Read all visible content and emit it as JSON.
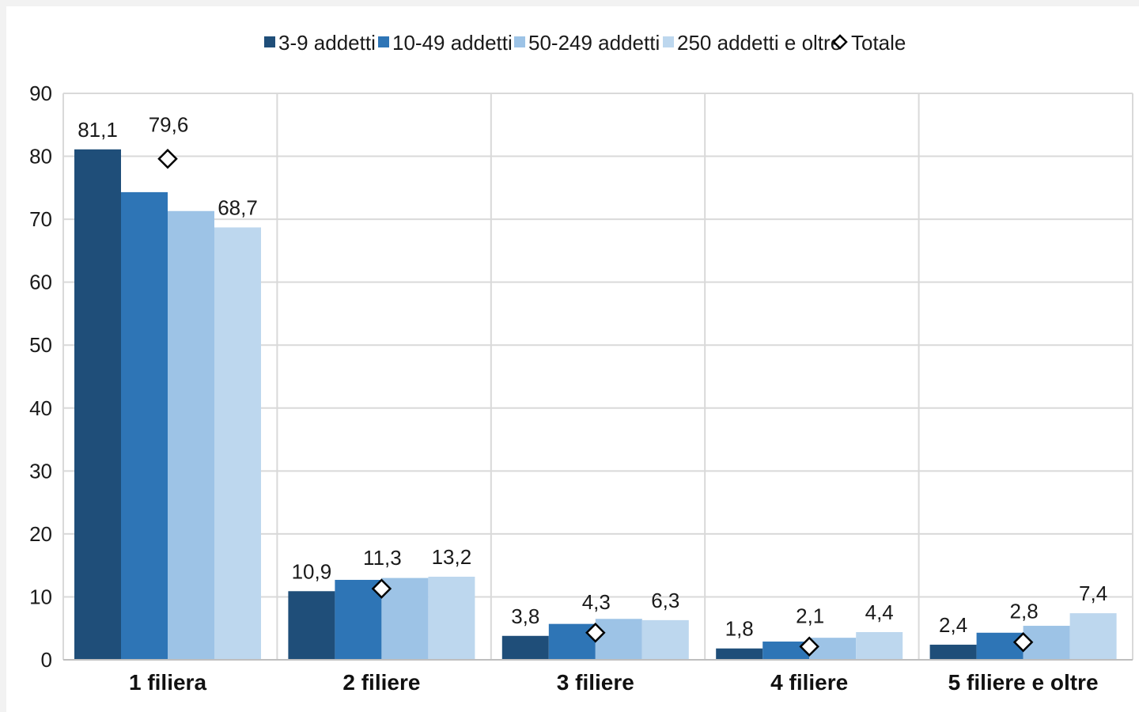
{
  "chart_data": {
    "type": "bar",
    "title": "",
    "xlabel": "",
    "ylabel": "",
    "ylim": [
      0,
      90
    ],
    "yticks": [
      0,
      10,
      20,
      30,
      40,
      50,
      60,
      70,
      80,
      90
    ],
    "grid": true,
    "legend_position": "top",
    "categories": [
      "1 filiera",
      "2 filiere",
      "3 filiere",
      "4 filiere",
      "5 filiere e oltre"
    ],
    "series": [
      {
        "name": "3-9 addetti",
        "color": "#1f4e79",
        "values": [
          81.1,
          10.9,
          3.8,
          1.8,
          2.4
        ],
        "labels": [
          "81,1",
          "10,9",
          "3,8",
          "1,8",
          "2,4"
        ]
      },
      {
        "name": "10-49 addetti",
        "color": "#2e75b6",
        "values": [
          74.3,
          12.7,
          5.7,
          2.9,
          4.3
        ],
        "labels": [
          "",
          "",
          "",
          "",
          ""
        ]
      },
      {
        "name": "50-249 addetti",
        "color": "#9dc3e6",
        "values": [
          71.3,
          13.0,
          6.5,
          3.5,
          5.4
        ],
        "labels": [
          "",
          "",
          "",
          "",
          ""
        ]
      },
      {
        "name": "250 addetti e oltre",
        "color": "#bdd7ee",
        "values": [
          68.7,
          13.2,
          6.3,
          4.4,
          7.4
        ],
        "labels": [
          "68,7",
          "13,2",
          "6,3",
          "4,4",
          "7,4"
        ]
      }
    ],
    "total": {
      "name": "Totale",
      "marker": "diamond",
      "values": [
        79.6,
        11.3,
        4.3,
        2.1,
        2.8
      ],
      "labels": [
        "79,6",
        "11,3",
        "4,3",
        "2,1",
        "2,8"
      ]
    }
  }
}
